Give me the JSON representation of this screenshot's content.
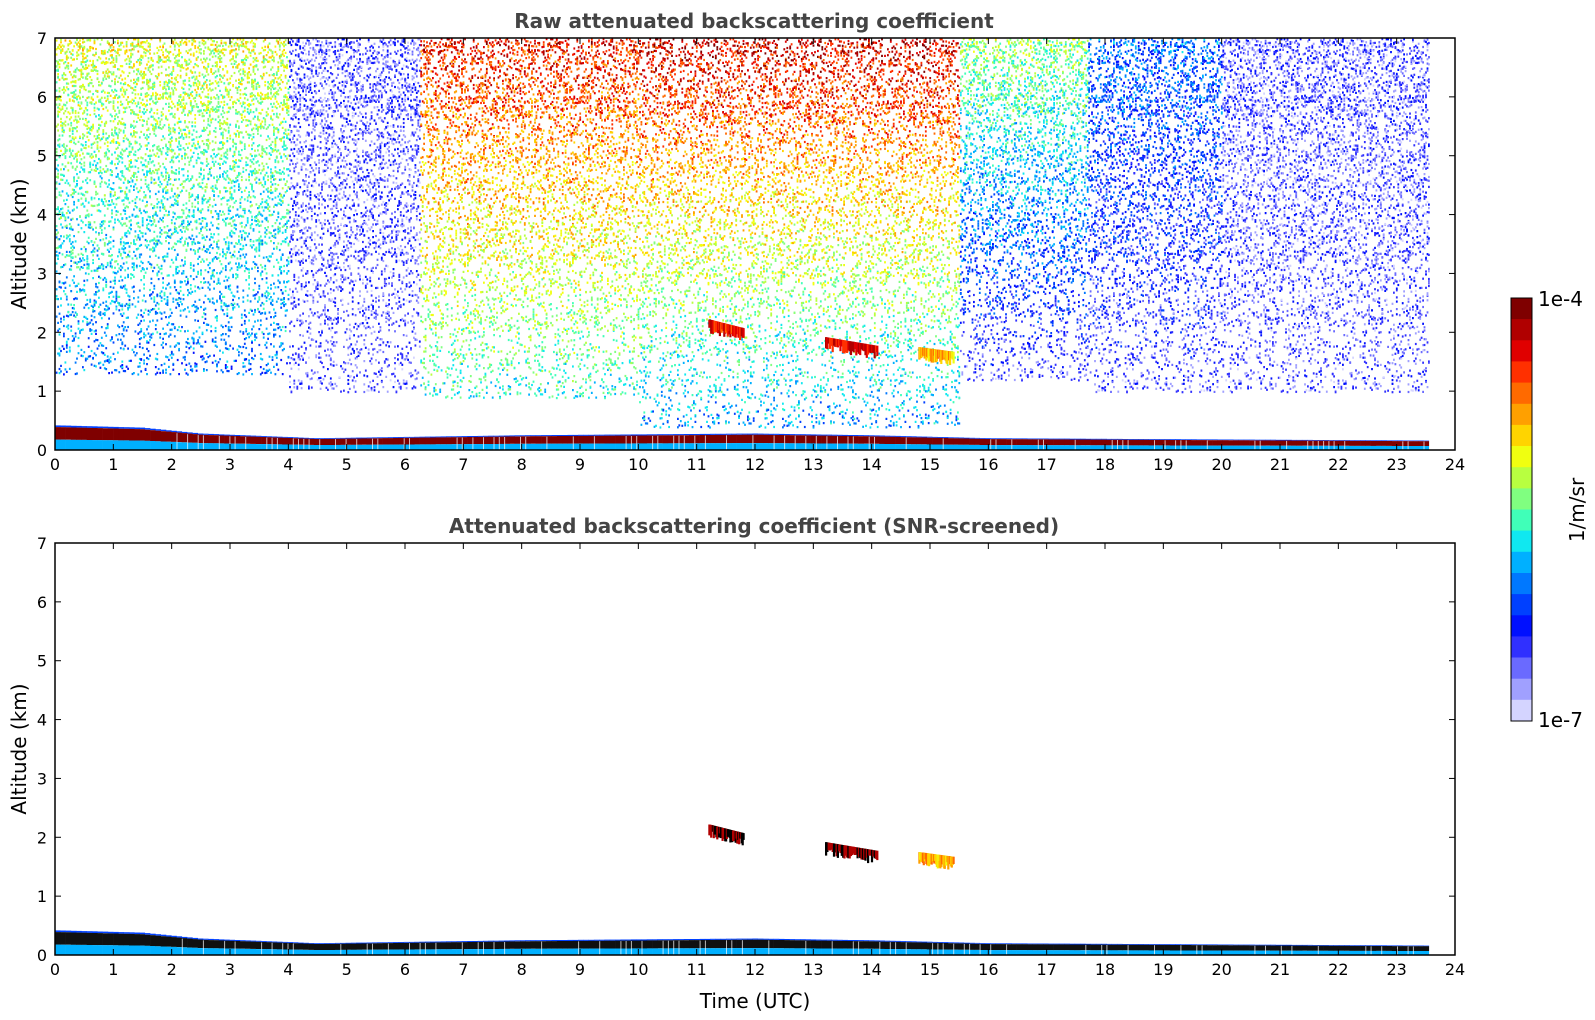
{
  "chart_data": [
    {
      "type": "heatmap",
      "title": "Raw attenuated backscattering coefficient",
      "xlabel": "",
      "ylabel": "Altitude (km)",
      "xlim": [
        0,
        24
      ],
      "ylim": [
        0,
        7
      ],
      "xticks": [
        "0",
        "1",
        "2",
        "3",
        "4",
        "5",
        "6",
        "7",
        "8",
        "9",
        "10",
        "11",
        "12",
        "13",
        "14",
        "15",
        "16",
        "17",
        "18",
        "19",
        "20",
        "21",
        "22",
        "23",
        "24"
      ],
      "yticks": [
        "0",
        "1",
        "2",
        "3",
        "4",
        "5",
        "6",
        "7"
      ],
      "data_end_time": 23.55,
      "regions": [
        {
          "t0": 0.0,
          "t1": 4.0,
          "alt_top": 7.0,
          "alt_bottom_of_noise": 1.3,
          "level_top": 0.62,
          "level_bottom": 0.3
        },
        {
          "t0": 4.0,
          "t1": 6.25,
          "alt_top": 7.0,
          "alt_bottom_of_noise": 1.0,
          "level_top": 0.12,
          "level_bottom": 0.12
        },
        {
          "t0": 6.25,
          "t1": 10.0,
          "alt_top": 7.0,
          "alt_bottom_of_noise": 0.9,
          "level_top": 0.88,
          "level_bottom": 0.45
        },
        {
          "t0": 10.0,
          "t1": 15.5,
          "alt_top": 7.0,
          "alt_bottom_of_noise": 0.4,
          "level_top": 0.92,
          "level_bottom": 0.35
        },
        {
          "t0": 15.5,
          "t1": 17.7,
          "alt_top": 7.0,
          "alt_bottom_of_noise": 1.2,
          "level_top": 0.55,
          "level_bottom": 0.12
        },
        {
          "t0": 17.7,
          "t1": 20.0,
          "alt_top": 7.0,
          "alt_bottom_of_noise": 1.0,
          "level_top": 0.3,
          "level_bottom": 0.12
        },
        {
          "t0": 20.0,
          "t1": 23.55,
          "alt_top": 7.0,
          "alt_bottom_of_noise": 1.0,
          "level_top": 0.12,
          "level_bottom": 0.12
        }
      ],
      "boundary_layer_top_km": [
        {
          "t": 0,
          "alt": 0.42
        },
        {
          "t": 1.5,
          "alt": 0.38
        },
        {
          "t": 2.5,
          "alt": 0.28
        },
        {
          "t": 4.5,
          "alt": 0.2
        },
        {
          "t": 8,
          "alt": 0.25
        },
        {
          "t": 12,
          "alt": 0.28
        },
        {
          "t": 14,
          "alt": 0.25
        },
        {
          "t": 16,
          "alt": 0.2
        },
        {
          "t": 23.55,
          "alt": 0.16
        }
      ],
      "clouds": [
        {
          "t0": 11.2,
          "t1": 11.8,
          "alt0": 2.15,
          "alt1": 2.0,
          "level": 0.95
        },
        {
          "t0": 13.2,
          "t1": 14.1,
          "alt0": 1.85,
          "alt1": 1.7,
          "level": 0.97
        },
        {
          "t0": 14.8,
          "t1": 15.4,
          "alt0": 1.68,
          "alt1": 1.6,
          "level": 0.8
        }
      ]
    },
    {
      "type": "heatmap",
      "title": "Attenuated backscattering coefficient (SNR-screened)",
      "xlabel": "Time (UTC)",
      "ylabel": "Altitude (km)",
      "xlim": [
        0,
        24
      ],
      "ylim": [
        0,
        7
      ],
      "xticks": [
        "0",
        "1",
        "2",
        "3",
        "4",
        "5",
        "6",
        "7",
        "8",
        "9",
        "10",
        "11",
        "12",
        "13",
        "14",
        "15",
        "16",
        "17",
        "18",
        "19",
        "20",
        "21",
        "22",
        "23",
        "24"
      ],
      "yticks": [
        "0",
        "1",
        "2",
        "3",
        "4",
        "5",
        "6",
        "7"
      ],
      "data_end_time": 23.55,
      "boundary_layer_top_km": [
        {
          "t": 0,
          "alt": 0.42
        },
        {
          "t": 1.5,
          "alt": 0.38
        },
        {
          "t": 2.5,
          "alt": 0.28
        },
        {
          "t": 4.5,
          "alt": 0.2
        },
        {
          "t": 8,
          "alt": 0.25
        },
        {
          "t": 12,
          "alt": 0.28
        },
        {
          "t": 14,
          "alt": 0.25
        },
        {
          "t": 16,
          "alt": 0.2
        },
        {
          "t": 23.55,
          "alt": 0.16
        }
      ],
      "clouds": [
        {
          "t0": 11.2,
          "t1": 11.8,
          "alt0": 2.15,
          "alt1": 2.0,
          "level": 1.0
        },
        {
          "t0": 13.2,
          "t1": 14.1,
          "alt0": 1.85,
          "alt1": 1.7,
          "level": 1.0
        },
        {
          "t0": 14.8,
          "t1": 15.4,
          "alt0": 1.68,
          "alt1": 1.6,
          "level": 0.8
        }
      ]
    }
  ],
  "colorbar": {
    "max_label": "1e-4",
    "min_label": "1e-7",
    "units_label": "1/m/sr",
    "colors": [
      "#7f0000",
      "#b00000",
      "#e00000",
      "#ff3000",
      "#ff6a00",
      "#ffa000",
      "#ffd400",
      "#f0ff10",
      "#b8ff40",
      "#80ff80",
      "#40ffb8",
      "#10e8f0",
      "#00b0ff",
      "#0078ff",
      "#0040ff",
      "#0010ff",
      "#3030ff",
      "#6a6aff",
      "#a0a0ff",
      "#d4d4ff"
    ]
  }
}
